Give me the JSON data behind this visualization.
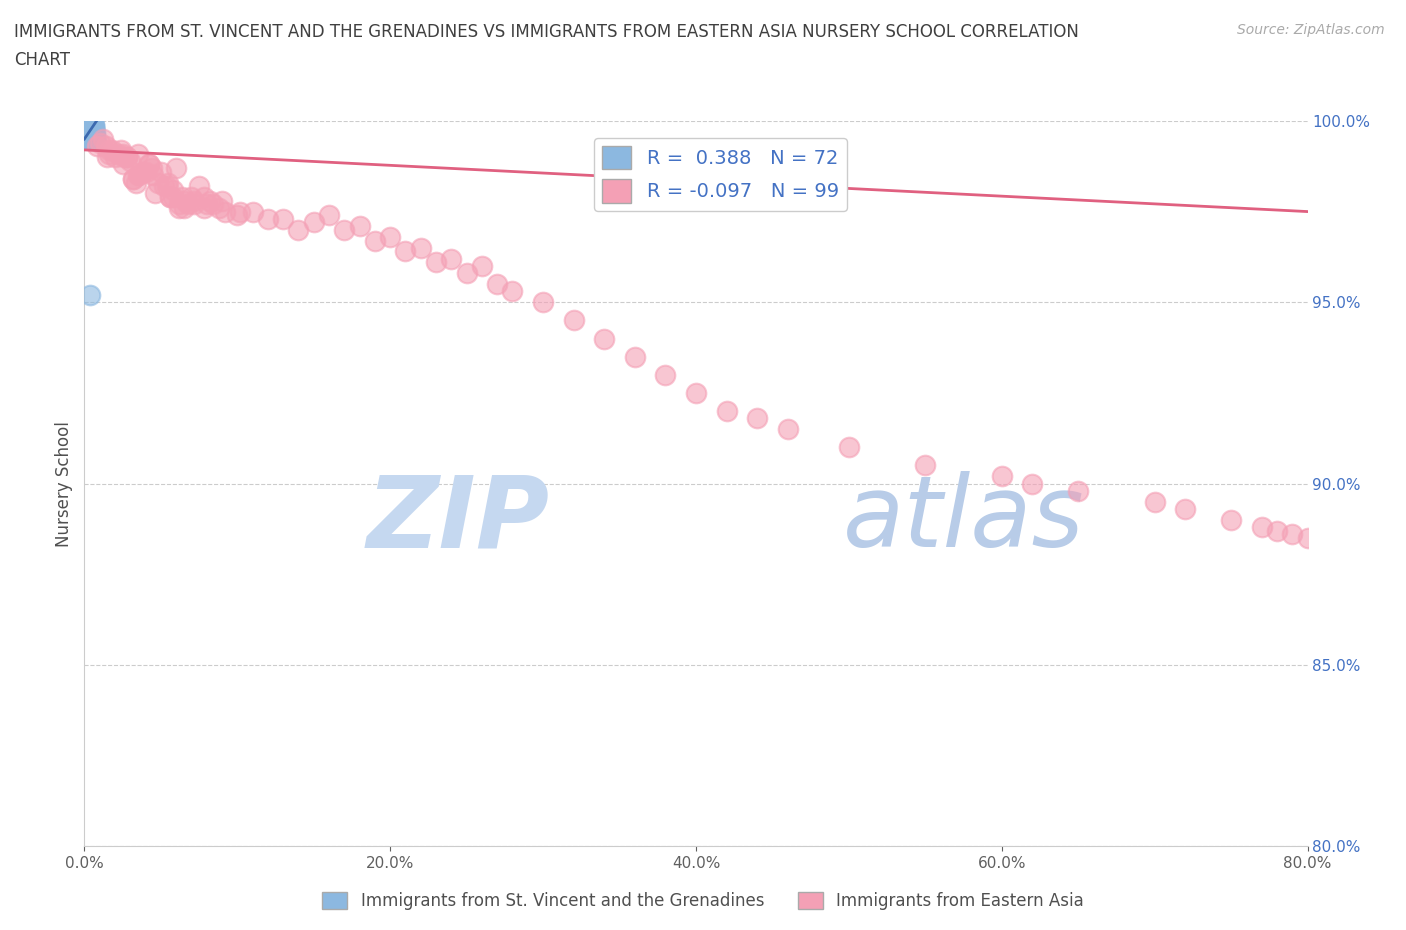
{
  "title_line1": "IMMIGRANTS FROM ST. VINCENT AND THE GRENADINES VS IMMIGRANTS FROM EASTERN ASIA NURSERY SCHOOL CORRELATION",
  "title_line2": "CHART",
  "source": "Source: ZipAtlas.com",
  "xlabel_blue": "Immigrants from St. Vincent and the Grenadines",
  "xlabel_pink": "Immigrants from Eastern Asia",
  "ylabel": "Nursery School",
  "xlim": [
    0.0,
    80.0
  ],
  "ylim": [
    80.0,
    100.0
  ],
  "xticks": [
    0.0,
    20.0,
    40.0,
    60.0,
    80.0
  ],
  "yticks": [
    80.0,
    85.0,
    90.0,
    95.0,
    100.0
  ],
  "blue_R": 0.388,
  "blue_N": 72,
  "pink_R": -0.097,
  "pink_N": 99,
  "blue_color": "#8cb8e0",
  "pink_color": "#f4a0b5",
  "blue_line_color": "#3c6ab0",
  "pink_line_color": "#e06080",
  "watermark_zip": "ZIP",
  "watermark_atlas": "atlas",
  "watermark_color_zip": "#c5d8f0",
  "watermark_color_atlas": "#b8cce8",
  "background_color": "#ffffff",
  "grid_color": "#cccccc",
  "title_color": "#404040",
  "ytick_color": "#4472c4",
  "xtick_color": "#606060",
  "blue_scatter_x": [
    0.3,
    0.5,
    0.2,
    0.4,
    0.3,
    0.6,
    0.4,
    0.7,
    0.3,
    0.2,
    0.5,
    0.4,
    0.6,
    0.3,
    0.2,
    0.4,
    0.5,
    0.3,
    0.6,
    0.4,
    0.3,
    0.2,
    0.5,
    0.4,
    0.7,
    0.3,
    0.6,
    0.4,
    0.2,
    0.5,
    0.3,
    0.4,
    0.6,
    0.2,
    0.5,
    0.3,
    0.4,
    0.7,
    0.2,
    0.5,
    0.3,
    0.6,
    0.4,
    0.2,
    0.5,
    0.3,
    0.7,
    0.4,
    0.6,
    0.3,
    0.4,
    0.2,
    0.5,
    0.6,
    0.3,
    0.4,
    0.7,
    0.2,
    0.5,
    0.3,
    0.6,
    0.4,
    0.2,
    0.5,
    0.3,
    0.4,
    0.6,
    0.2,
    0.7,
    0.3,
    0.4,
    0.5
  ],
  "blue_scatter_y": [
    100.0,
    99.8,
    100.0,
    99.7,
    99.9,
    99.8,
    100.0,
    99.6,
    99.8,
    100.0,
    99.7,
    99.5,
    99.9,
    100.0,
    99.8,
    99.6,
    99.7,
    100.0,
    99.5,
    99.8,
    100.0,
    99.7,
    99.6,
    99.9,
    99.5,
    100.0,
    99.8,
    99.7,
    100.0,
    99.6,
    99.9,
    99.5,
    99.8,
    100.0,
    99.7,
    99.6,
    99.9,
    99.5,
    100.0,
    99.8,
    99.7,
    99.6,
    99.9,
    100.0,
    99.5,
    99.8,
    99.7,
    99.6,
    99.9,
    100.0,
    99.5,
    99.8,
    99.7,
    99.6,
    100.0,
    99.9,
    99.5,
    99.8,
    99.7,
    100.0,
    99.6,
    99.9,
    99.5,
    99.8,
    100.0,
    99.7,
    99.6,
    99.9,
    99.5,
    100.0,
    95.2,
    99.8
  ],
  "pink_scatter_x": [
    0.8,
    1.5,
    2.5,
    3.5,
    4.5,
    6.0,
    7.5,
    9.0,
    2.0,
    5.0,
    3.0,
    1.0,
    4.0,
    2.5,
    7.0,
    1.8,
    8.0,
    3.2,
    5.5,
    1.2,
    6.5,
    4.2,
    2.8,
    5.8,
    3.5,
    10.0,
    5.2,
    7.8,
    1.6,
    4.8,
    6.8,
    2.2,
    6.2,
    3.8,
    9.2,
    5.8,
    1.4,
    8.2,
    4.4,
    6.4,
    2.6,
    7.2,
    3.2,
    5.4,
    8.8,
    1.6,
    4.6,
    6.6,
    8.4,
    2.4,
    5.6,
    3.6,
    7.2,
    10.2,
    4.2,
    6.2,
    2.8,
    7.8,
    3.4,
    5.6,
    11.0,
    12.0,
    14.0,
    15.0,
    16.0,
    18.0,
    20.0,
    22.0,
    24.0,
    26.0,
    13.0,
    17.0,
    19.0,
    21.0,
    23.0,
    25.0,
    27.0,
    30.0,
    28.0,
    32.0,
    34.0,
    36.0,
    38.0,
    40.0,
    42.0,
    44.0,
    46.0,
    50.0,
    55.0,
    60.0,
    65.0,
    70.0,
    72.0,
    75.0,
    77.0,
    78.0,
    79.0,
    80.0,
    62.0
  ],
  "pink_scatter_y": [
    99.3,
    99.0,
    98.8,
    99.1,
    98.5,
    98.7,
    98.2,
    97.8,
    99.0,
    98.6,
    98.9,
    99.4,
    98.6,
    99.1,
    97.9,
    99.2,
    97.7,
    98.4,
    98.3,
    99.5,
    97.6,
    98.8,
    99.0,
    97.9,
    98.5,
    97.4,
    98.2,
    97.9,
    99.2,
    98.3,
    97.7,
    99.1,
    97.6,
    98.6,
    97.5,
    98.1,
    99.3,
    97.8,
    98.7,
    97.9,
    99.0,
    97.7,
    98.4,
    98.2,
    97.6,
    99.1,
    98.0,
    97.8,
    97.7,
    99.2,
    97.9,
    98.5,
    97.8,
    97.5,
    98.8,
    97.7,
    99.0,
    97.6,
    98.3,
    97.9,
    97.5,
    97.3,
    97.0,
    97.2,
    97.4,
    97.1,
    96.8,
    96.5,
    96.2,
    96.0,
    97.3,
    97.0,
    96.7,
    96.4,
    96.1,
    95.8,
    95.5,
    95.0,
    95.3,
    94.5,
    94.0,
    93.5,
    93.0,
    92.5,
    92.0,
    91.8,
    91.5,
    91.0,
    90.5,
    90.2,
    89.8,
    89.5,
    89.3,
    89.0,
    88.8,
    88.7,
    88.6,
    88.5,
    90.0
  ],
  "pink_trendline_x": [
    0.0,
    80.0
  ],
  "pink_trendline_y": [
    99.2,
    97.5
  ],
  "blue_trendline_x": [
    0.0,
    0.8
  ],
  "blue_trendline_y": [
    99.5,
    100.0
  ]
}
